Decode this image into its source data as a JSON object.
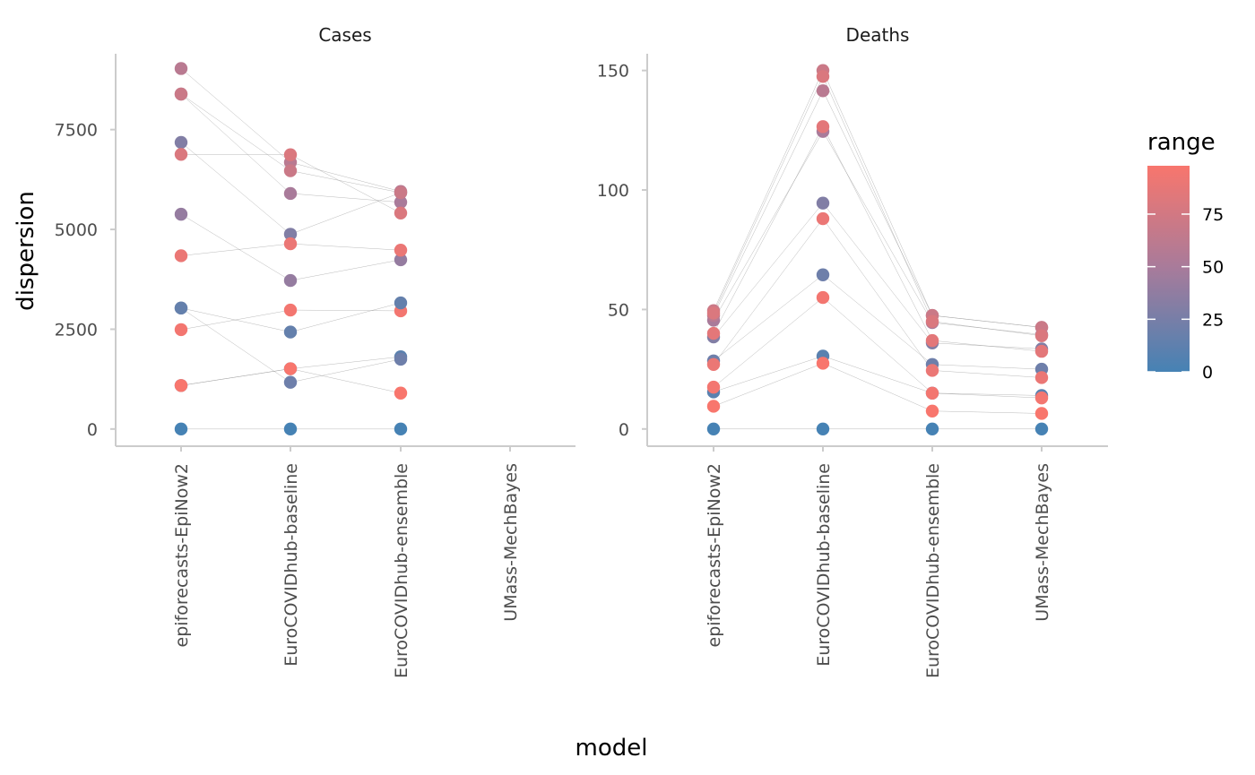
{
  "chart_data": {
    "type": "scatter",
    "xlabel": "model",
    "ylabel": "dispersion",
    "categories": [
      "epiforecasts-EpiNow2",
      "EuroCOVIDhub-baseline",
      "EuroCOVIDhub-ensemble",
      "UMass-MechBayes"
    ],
    "legend": {
      "title": "range",
      "position": "right",
      "ticks": [
        0,
        25,
        50,
        75
      ],
      "range": [
        0,
        98
      ],
      "low_color": "#4682B4",
      "mid_color": "#A77B9B",
      "high_color": "#F8766D"
    },
    "panels": [
      {
        "title": "Cases",
        "ylim": [
          -430,
          9400
        ],
        "yticks": [
          0,
          2500,
          5000,
          7500
        ],
        "tick_labels": [
          "0",
          "2500",
          "5000",
          "7500"
        ],
        "lines": [
          {
            "range": 0,
            "y": [
              0,
              0,
              0
            ]
          },
          {
            "range": 10,
            "y": [
              1090,
              1510,
              1810
            ]
          },
          {
            "range": 20,
            "y": [
              3030,
              1170,
              1750
            ]
          },
          {
            "range": 30,
            "y": [
              7180,
              4880,
              5920
            ]
          },
          {
            "range": 40,
            "y": [
              5380,
              3720,
              4240
            ]
          },
          {
            "range": 50,
            "y": [
              8390,
              5900,
              5680
            ]
          },
          {
            "range": 60,
            "y": [
              9030,
              6680,
              5950
            ]
          },
          {
            "range": 70,
            "y": [
              8390,
              6470,
              5920
            ]
          },
          {
            "range": 80,
            "y": [
              6880,
              6870,
              5410
            ]
          },
          {
            "range": 90,
            "y": [
              4340,
              4640,
              4480
            ]
          },
          {
            "range": 95,
            "y": [
              2490,
              2980,
              2960
            ]
          },
          {
            "range": 98,
            "y": [
              1090,
              1510,
              900
            ]
          },
          {
            "range": 15,
            "y": [
              3030,
              2430,
              3160
            ]
          }
        ]
      },
      {
        "title": "Deaths",
        "ylim": [
          -7.2,
          157
        ],
        "yticks": [
          0,
          50,
          100,
          150
        ],
        "tick_labels": [
          "0",
          "50",
          "100",
          "150"
        ],
        "lines": [
          {
            "range": 0,
            "y": [
              0,
              0,
              0,
              0
            ]
          },
          {
            "range": 10,
            "y": [
              15.5,
              30.5,
              15,
              14
            ]
          },
          {
            "range": 20,
            "y": [
              28.5,
              64.5,
              27,
              25
            ]
          },
          {
            "range": 30,
            "y": [
              38.5,
              94.5,
              36,
              33.5
            ]
          },
          {
            "range": 50,
            "y": [
              45.5,
              124.5,
              44.5,
              39.5
            ]
          },
          {
            "range": 60,
            "y": [
              47.5,
              141.5,
              47.5,
              42.5
            ]
          },
          {
            "range": 70,
            "y": [
              49.5,
              150,
              47.5,
              42.5
            ]
          },
          {
            "range": 80,
            "y": [
              48.5,
              147.5,
              45,
              39
            ]
          },
          {
            "range": 85,
            "y": [
              40,
              126.5,
              37,
              32.5
            ]
          },
          {
            "range": 90,
            "y": [
              27,
              88,
              24.5,
              21.5
            ]
          },
          {
            "range": 95,
            "y": [
              17.5,
              55,
              15,
              13
            ]
          },
          {
            "range": 98,
            "y": [
              9.5,
              27.5,
              7.5,
              6.5
            ]
          }
        ]
      }
    ]
  }
}
